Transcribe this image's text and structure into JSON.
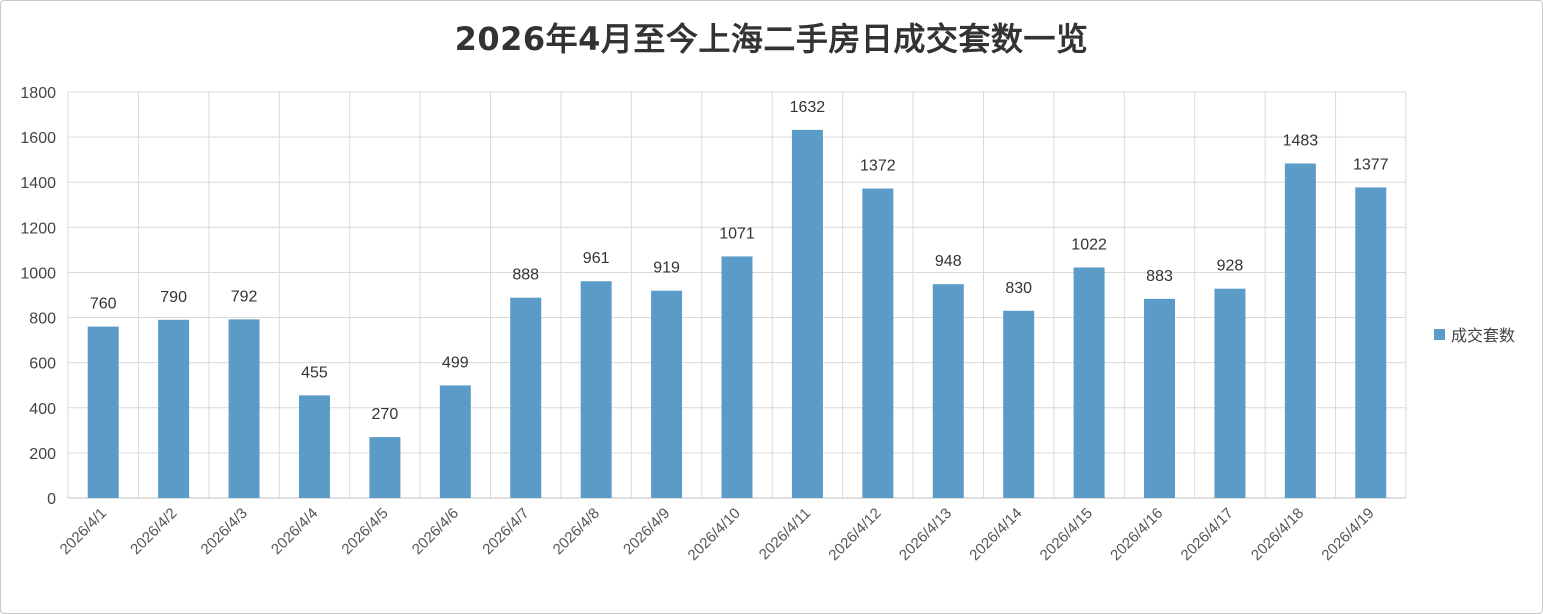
{
  "chart_data": {
    "type": "bar",
    "title": "2026年4月至今上海二手房日成交套数一览",
    "categories": [
      "2026/4/1",
      "2026/4/2",
      "2026/4/3",
      "2026/4/4",
      "2026/4/5",
      "2026/4/6",
      "2026/4/7",
      "2026/4/8",
      "2026/4/9",
      "2026/4/10",
      "2026/4/11",
      "2026/4/12",
      "2026/4/13",
      "2026/4/14",
      "2026/4/15",
      "2026/4/16",
      "2026/4/17",
      "2026/4/18",
      "2026/4/19"
    ],
    "series": [
      {
        "name": "成交套数",
        "values": [
          760,
          790,
          792,
          455,
          270,
          499,
          888,
          961,
          919,
          1071,
          1632,
          1372,
          948,
          830,
          1022,
          883,
          928,
          1483,
          1377
        ],
        "color": "#5b9bc8"
      }
    ],
    "ylim": [
      0,
      1800
    ],
    "yticks": [
      0,
      200,
      400,
      600,
      800,
      1000,
      1200,
      1400,
      1600,
      1800
    ],
    "grid": true,
    "legend_position": "right",
    "data_labels": true
  }
}
